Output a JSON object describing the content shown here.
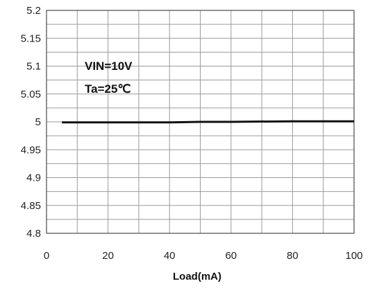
{
  "chart_data": {
    "type": "line",
    "title": "",
    "xlabel": "Load(mA)",
    "ylabel": "",
    "xlim": [
      0,
      100
    ],
    "ylim": [
      4.8,
      5.2
    ],
    "x_tick_labels": [
      "0",
      "20",
      "40",
      "60",
      "80",
      "100"
    ],
    "y_tick_labels": [
      "5.2",
      "5.15",
      "5.1",
      "5.05",
      "5",
      "4.95",
      "4.9",
      "4.85",
      "4.8"
    ],
    "grid": true,
    "legend": "none",
    "annotations": [
      "VIN=10V",
      "Ta=25℃"
    ],
    "series": [
      {
        "color": "#111111",
        "x": [
          5,
          20,
          40,
          50,
          60,
          80,
          100
        ],
        "y": [
          4.999,
          4.999,
          4.999,
          5.0,
          5.0,
          5.001,
          5.001
        ]
      }
    ]
  },
  "colors": {
    "grid": "#9a9a9a",
    "frame": "#4a4a4a",
    "line": "#111111"
  }
}
